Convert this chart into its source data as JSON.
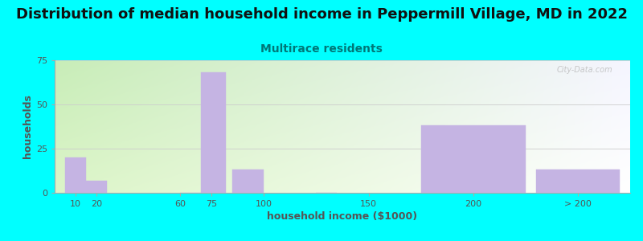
{
  "title": "Distribution of median household income in Peppermill Village, MD in 2022",
  "subtitle": "Multirace residents",
  "xlabel": "household income ($1000)",
  "ylabel": "households",
  "background_color": "#00FFFF",
  "plot_bg_top_left": "#c8edb8",
  "plot_bg_bottom_right": "#f5f5ff",
  "bar_color": "#c5b4e3",
  "bar_edgecolor": "#c5b4e3",
  "bar_linewidth": 0.3,
  "title_fontsize": 13,
  "subtitle_fontsize": 10,
  "axis_label_fontsize": 9,
  "tick_fontsize": 8,
  "title_color": "#111111",
  "subtitle_color": "#007777",
  "tick_color": "#555555",
  "grid_color": "#cccccc",
  "watermark_text": "City-Data.com",
  "bar_lefts": [
    5,
    15,
    60,
    70,
    85,
    125,
    175,
    230
  ],
  "bar_widths": [
    10,
    10,
    10,
    12,
    15,
    10,
    50,
    40
  ],
  "bar_heights": [
    20,
    7,
    0,
    68,
    13,
    0,
    38,
    13
  ],
  "xtick_positions": [
    10,
    20,
    60,
    75,
    100,
    150,
    200,
    250
  ],
  "xtick_labels": [
    "10",
    "20",
    "60",
    "75",
    "100",
    "150",
    "200",
    "> 200"
  ],
  "xlim": [
    0,
    275
  ],
  "ylim": [
    0,
    75
  ],
  "yticks": [
    0,
    25,
    50,
    75
  ]
}
